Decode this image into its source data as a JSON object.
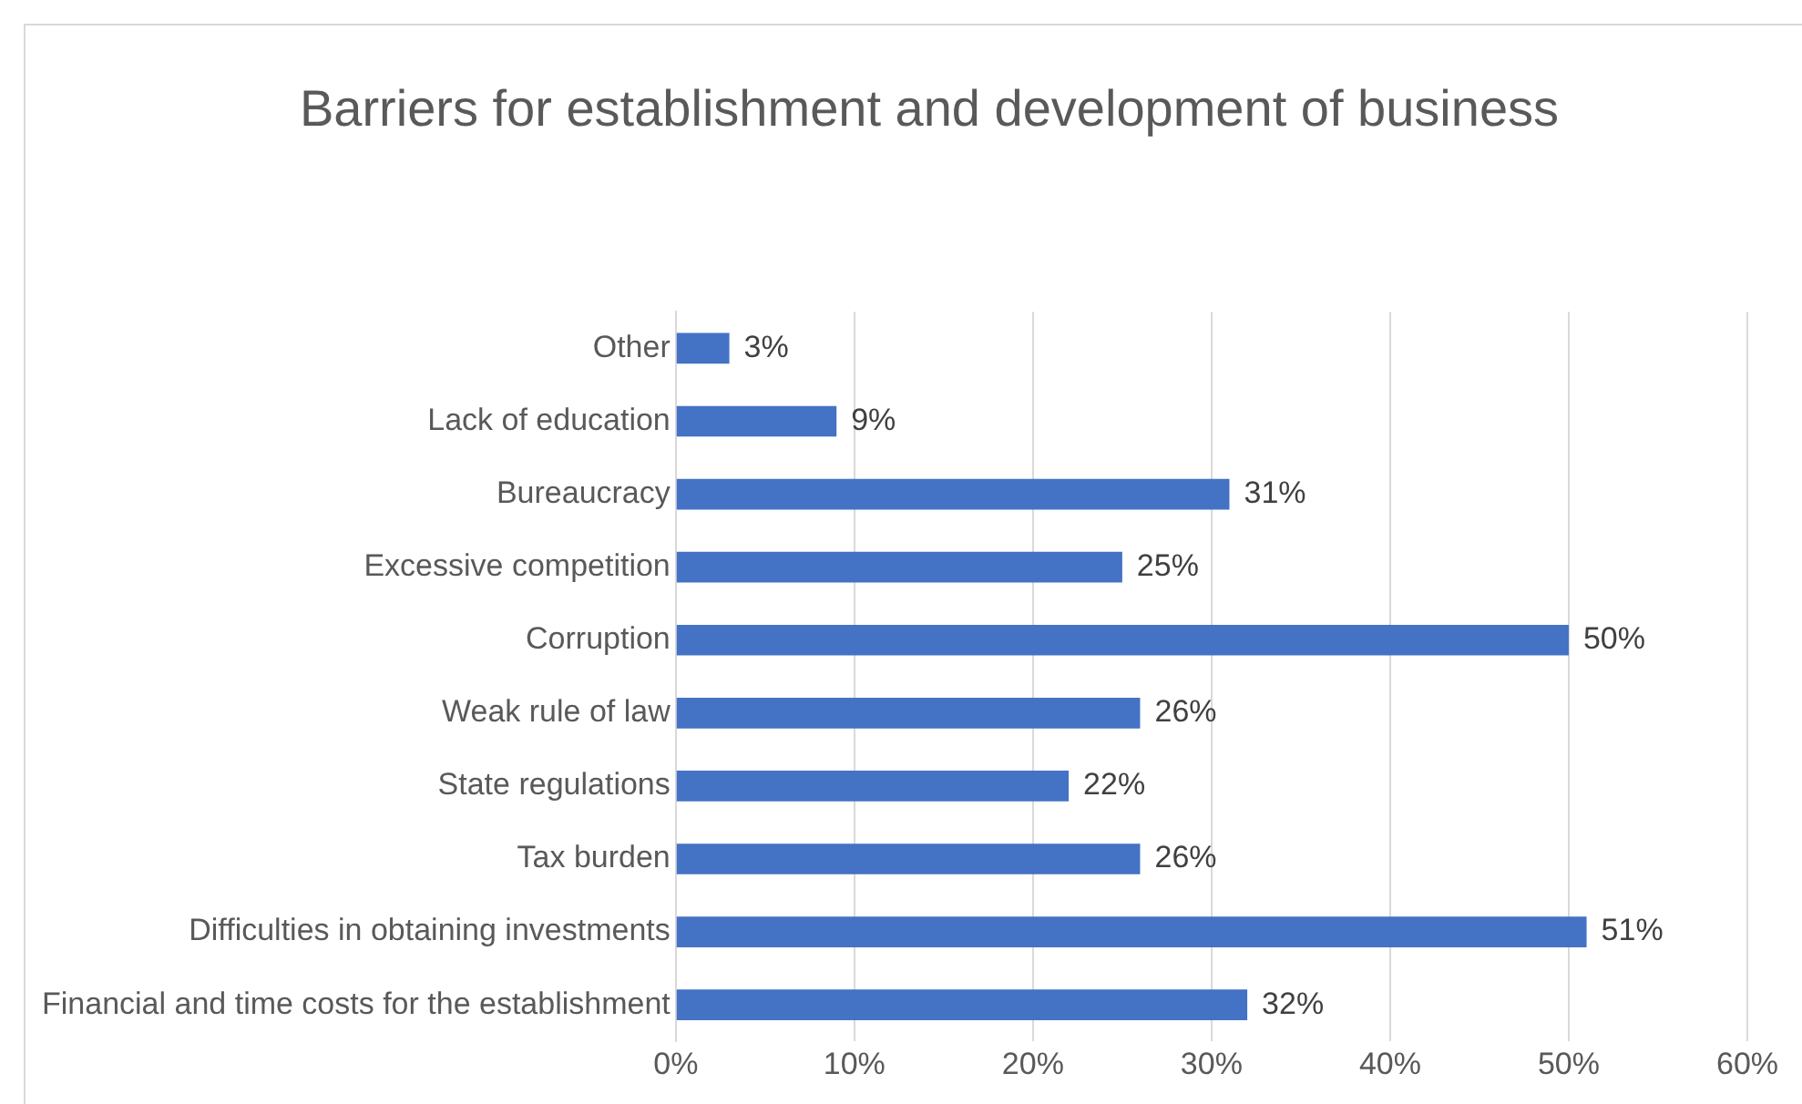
{
  "chart_data": {
    "type": "bar",
    "orientation": "horizontal",
    "title": "Barriers for establishment and development of business",
    "categories": [
      "Other",
      "Lack of education",
      "Bureaucracy",
      "Excessive competition",
      "Corruption",
      "Weak rule of law",
      "State regulations",
      "Tax burden",
      "Difficulties in obtaining investments",
      "Financial and time costs for the establishment"
    ],
    "values": [
      3,
      9,
      31,
      25,
      50,
      26,
      22,
      26,
      51,
      32
    ],
    "value_labels": [
      "3%",
      "9%",
      "31%",
      "25%",
      "50%",
      "26%",
      "22%",
      "26%",
      "51%",
      "32%"
    ],
    "color": "#4472c4",
    "xlim": [
      0,
      60
    ],
    "xticks": [
      {
        "value": 0,
        "label": "0%"
      },
      {
        "value": 10,
        "label": "10%"
      },
      {
        "value": 20,
        "label": "20%"
      },
      {
        "value": 30,
        "label": "30%"
      },
      {
        "value": 40,
        "label": "40%"
      },
      {
        "value": 50,
        "label": "50%"
      },
      {
        "value": 60,
        "label": "60%"
      }
    ],
    "grid": "x",
    "legend": false
  }
}
